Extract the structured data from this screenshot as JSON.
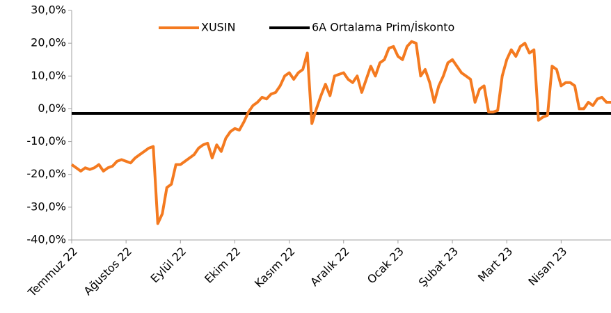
{
  "chart_data": {
    "type": "line",
    "categories": [
      "Temmuz 22",
      null,
      null,
      null,
      null,
      null,
      null,
      null,
      null,
      null,
      null,
      null,
      "Ağustos 22",
      null,
      null,
      null,
      null,
      null,
      null,
      null,
      null,
      null,
      null,
      null,
      "Eylül 22",
      null,
      null,
      null,
      null,
      null,
      null,
      null,
      null,
      null,
      null,
      null,
      "Ekim 22",
      null,
      null,
      null,
      null,
      null,
      null,
      null,
      null,
      null,
      null,
      null,
      "Kasım 22",
      null,
      null,
      null,
      null,
      null,
      null,
      null,
      null,
      null,
      null,
      null,
      "Aralık 22",
      null,
      null,
      null,
      null,
      null,
      null,
      null,
      null,
      null,
      null,
      null,
      "Ocak 23",
      null,
      null,
      null,
      null,
      null,
      null,
      null,
      null,
      null,
      null,
      null,
      "Şubat 23",
      null,
      null,
      null,
      null,
      null,
      null,
      null,
      null,
      null,
      null,
      null,
      "Mart 23",
      null,
      null,
      null,
      null,
      null,
      null,
      null,
      null,
      null,
      null,
      null,
      "Nisan 23",
      null,
      null,
      null,
      null,
      null,
      null,
      null,
      null,
      null,
      null,
      null
    ],
    "series": [
      {
        "name": "XUSIN",
        "color": "#f47a20",
        "width": 4,
        "values": [
          -17,
          -18,
          -19,
          -18,
          -18.5,
          -18,
          -17,
          -19,
          -18,
          -17.5,
          -16,
          -15.5,
          -16,
          -16.5,
          -15,
          -14,
          -13,
          -12,
          -11.5,
          -35,
          -32,
          -24,
          -23,
          -17,
          -17,
          -16,
          -15,
          -14,
          -12,
          -11,
          -10.5,
          -15,
          -11,
          -13,
          -9,
          -7,
          -6,
          -6.5,
          -4,
          -1,
          1,
          2,
          3.5,
          3,
          4.5,
          5,
          7,
          10,
          11,
          9,
          11,
          12,
          17,
          -4.5,
          0,
          4,
          7.5,
          4,
          10,
          10.5,
          11,
          9,
          8,
          10,
          5,
          9,
          13,
          10,
          14,
          15,
          18.5,
          19,
          16,
          15,
          19,
          20.5,
          20,
          10,
          12,
          8,
          2,
          7,
          10,
          14,
          15,
          13,
          11,
          10,
          9,
          2,
          6,
          7,
          -1,
          -1,
          -0.5,
          10,
          15,
          18,
          16,
          19,
          20,
          17,
          18,
          -3.5,
          -2.5,
          -2,
          13,
          12,
          7,
          8,
          8,
          7,
          0,
          0,
          2,
          1,
          3,
          3.5,
          2,
          2
        ]
      },
      {
        "name": "6A Ortalama Prim/İskonto",
        "color": "#000000",
        "width": 4,
        "values": [
          -1.4,
          -1.4,
          -1.4,
          -1.4,
          -1.4,
          -1.4,
          -1.4,
          -1.4,
          -1.4,
          -1.4,
          -1.4,
          -1.4,
          -1.4,
          -1.4,
          -1.4,
          -1.4,
          -1.4,
          -1.4,
          -1.4,
          -1.4,
          -1.4,
          -1.4,
          -1.4,
          -1.4,
          -1.4,
          -1.4,
          -1.4,
          -1.4,
          -1.4,
          -1.4,
          -1.4,
          -1.4,
          -1.4,
          -1.4,
          -1.4,
          -1.4,
          -1.4,
          -1.4,
          -1.4,
          -1.4,
          -1.4,
          -1.4,
          -1.4,
          -1.4,
          -1.4,
          -1.4,
          -1.4,
          -1.4,
          -1.4,
          -1.4,
          -1.4,
          -1.4,
          -1.4,
          -1.4,
          -1.4,
          -1.4,
          -1.4,
          -1.4,
          -1.4,
          -1.4,
          -1.4,
          -1.4,
          -1.4,
          -1.4,
          -1.4,
          -1.4,
          -1.4,
          -1.4,
          -1.4,
          -1.4,
          -1.4,
          -1.4,
          -1.4,
          -1.4,
          -1.4,
          -1.4,
          -1.4,
          -1.4,
          -1.4,
          -1.4,
          -1.4,
          -1.4,
          -1.4,
          -1.4,
          -1.4,
          -1.4,
          -1.4,
          -1.4,
          -1.4,
          -1.4,
          -1.4,
          -1.4,
          -1.4,
          -1.4,
          -1.4,
          -1.4,
          -1.4,
          -1.4,
          -1.4,
          -1.4,
          -1.4,
          -1.4,
          -1.4,
          -1.4,
          -1.4,
          -1.4,
          -1.4,
          -1.4,
          -1.4,
          -1.4,
          -1.4,
          -1.4,
          -1.4,
          -1.4,
          -1.4,
          -1.4,
          -1.4,
          -1.4,
          -1.4,
          -1.4
        ]
      }
    ],
    "ylim": [
      -40,
      30
    ],
    "yticks": [
      {
        "value": -40,
        "label": "-40,0%"
      },
      {
        "value": -30,
        "label": "-30,0%"
      },
      {
        "value": -20,
        "label": "-20,0%"
      },
      {
        "value": -10,
        "label": "-10,0%"
      },
      {
        "value": 0,
        "label": "0,0%"
      },
      {
        "value": 10,
        "label": "10,0%"
      },
      {
        "value": 20,
        "label": "20,0%"
      },
      {
        "value": 30,
        "label": "30,0%"
      }
    ],
    "grid": false,
    "legend": "top"
  }
}
